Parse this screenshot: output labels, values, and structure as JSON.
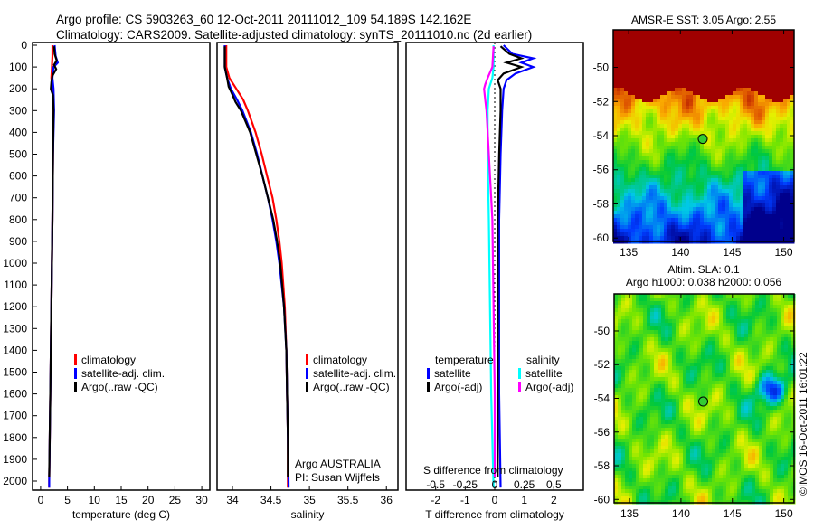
{
  "header": {
    "title_line1": "Argo profile: CS 5903263_60 12-Oct-2011 20111012_109 54.189S 142.162E",
    "title_line2": "Climatology: CARS2009. Satellite-adjusted climatology: synTS_20111010.nc (2d earlier)"
  },
  "colors": {
    "climatology": "#ff0000",
    "satellite": "#0000ff",
    "argo": "#000000",
    "sal_satellite": "#00ffff",
    "sal_argo": "#ff00ff"
  },
  "chart_data": [
    {
      "type": "line",
      "id": "temperature",
      "xlabel": "temperature (deg C)",
      "xlim": [
        -1.5,
        31.5
      ],
      "xticks": [
        0,
        5,
        10,
        15,
        20,
        25,
        30
      ],
      "ylim": [
        2050,
        0
      ],
      "yticks": [
        0,
        100,
        200,
        300,
        400,
        500,
        600,
        700,
        800,
        900,
        1000,
        1100,
        1200,
        1300,
        1400,
        1500,
        1600,
        1700,
        1800,
        1900,
        2000
      ],
      "legend": {
        "items": [
          "climatology",
          "satellite-adj. clim.",
          "Argo(..raw -QC)"
        ],
        "placement": "lower-center"
      },
      "series": [
        {
          "name": "climatology",
          "color": "#ff0000",
          "pressure": [
            0,
            50,
            100,
            150,
            200,
            300,
            500,
            800,
            1200,
            1600,
            2000,
            2030
          ],
          "values": [
            2.2,
            2.2,
            2.1,
            2.0,
            2.2,
            2.4,
            2.3,
            2.2,
            2.0,
            1.8,
            1.6,
            1.6
          ]
        },
        {
          "name": "satellite-adj. clim.",
          "color": "#0000ff",
          "pressure": [
            0,
            50,
            80,
            100,
            150,
            200,
            300,
            500,
            800,
            1200,
            1600,
            2000,
            2030
          ],
          "values": [
            2.6,
            2.8,
            3.2,
            2.4,
            2.2,
            2.4,
            2.5,
            2.3,
            2.2,
            2.0,
            1.8,
            1.6,
            1.6
          ]
        },
        {
          "name": "Argo(..raw -QC)",
          "color": "#000000",
          "pressure": [
            5,
            40,
            70,
            90,
            110,
            140,
            170,
            200,
            230,
            300,
            500,
            800,
            1200,
            1600,
            1980
          ],
          "values": [
            2.5,
            2.6,
            3.0,
            2.5,
            2.9,
            2.2,
            2.0,
            1.9,
            2.3,
            2.4,
            2.3,
            2.2,
            2.0,
            1.8,
            1.6
          ]
        }
      ]
    },
    {
      "type": "line",
      "id": "salinity",
      "xlabel": "salinity",
      "xlim": [
        33.8,
        36.15
      ],
      "xticks": [
        34,
        34.5,
        35,
        35.5,
        36
      ],
      "ylim": [
        2050,
        0
      ],
      "legend": {
        "items": [
          "climatology",
          "satellite-adj. clim.",
          "Argo(..raw -QC)"
        ],
        "placement": "lower-right"
      },
      "annotations": [
        "Argo AUSTRALIA",
        "PI: Susan Wijffels"
      ],
      "series": [
        {
          "name": "climatology",
          "color": "#ff0000",
          "pressure": [
            0,
            100,
            150,
            200,
            250,
            300,
            400,
            500,
            600,
            700,
            800,
            900,
            1000,
            1200,
            1400,
            1600,
            1800,
            2030
          ],
          "values": [
            33.92,
            33.92,
            33.96,
            34.05,
            34.14,
            34.2,
            34.3,
            34.38,
            34.45,
            34.52,
            34.57,
            34.61,
            34.64,
            34.68,
            34.7,
            34.71,
            34.72,
            34.72
          ]
        },
        {
          "name": "satellite-adj. clim.",
          "color": "#0000ff",
          "pressure": [
            0,
            100,
            150,
            200,
            250,
            300,
            400,
            500,
            600,
            700,
            800,
            900,
            1000,
            1200,
            1400,
            1600,
            1800,
            2030
          ],
          "values": [
            33.9,
            33.9,
            33.93,
            33.98,
            34.06,
            34.13,
            34.24,
            34.32,
            34.39,
            34.46,
            34.52,
            34.57,
            34.61,
            34.67,
            34.7,
            34.71,
            34.72,
            34.73
          ]
        },
        {
          "name": "Argo(..raw -QC)",
          "color": "#000000",
          "pressure": [
            5,
            100,
            150,
            190,
            220,
            260,
            300,
            400,
            500,
            600,
            700,
            800,
            900,
            1000,
            1200,
            1400,
            1600,
            1800,
            1980
          ],
          "values": [
            33.9,
            33.9,
            33.93,
            33.95,
            33.99,
            34.04,
            34.11,
            34.23,
            34.31,
            34.39,
            34.46,
            34.53,
            34.58,
            34.62,
            34.67,
            34.7,
            34.71,
            34.72,
            34.72
          ]
        }
      ]
    },
    {
      "type": "line",
      "id": "difference",
      "xlabel": "T difference from climatology",
      "xlabel2": "S difference from climatology",
      "xlim": [
        -3,
        3
      ],
      "xticks": [
        -2,
        -1,
        0,
        1,
        2
      ],
      "xticks2_labels": [
        "-0.5",
        "-0.25",
        "0",
        "0.25",
        "0.5"
      ],
      "xticks2": [
        -0.5,
        -0.25,
        0,
        0.25,
        0.5
      ],
      "legend": {
        "temperature_header": "temperature",
        "salinity_header": "salinity",
        "items_t": [
          "satellite",
          "Argo(-adj)"
        ],
        "items_s": [
          "satellite",
          "Argo(-adj)"
        ],
        "placement": "lower-center"
      },
      "series": [
        {
          "name": "T satellite",
          "color": "#0000ff",
          "pressure": [
            0,
            40,
            60,
            80,
            100,
            130,
            160,
            200,
            300,
            500,
            800,
            1200,
            1600,
            2030
          ],
          "values": [
            0.3,
            0.6,
            1.3,
            0.9,
            1.3,
            0.7,
            0.4,
            0.3,
            0.25,
            0.2,
            0.15,
            0.15,
            0.15,
            0.2
          ]
        },
        {
          "name": "T Argo(-adj)",
          "color": "#000000",
          "pressure": [
            5,
            40,
            60,
            80,
            100,
            130,
            160,
            200,
            300,
            500,
            800,
            1200,
            1600,
            1980
          ],
          "values": [
            0.2,
            0.5,
            0.9,
            0.4,
            0.9,
            0.3,
            0.1,
            0.2,
            0.2,
            0.15,
            0.1,
            0.1,
            0.1,
            0.1
          ]
        },
        {
          "name": "S satellite",
          "color": "#00ffff",
          "pressure": [
            0,
            100,
            150,
            200,
            300,
            500,
            800,
            1200,
            1600,
            2030
          ],
          "values": [
            -0.01,
            -0.01,
            -0.02,
            -0.05,
            -0.06,
            -0.06,
            -0.05,
            -0.04,
            -0.03,
            -0.01
          ]
        },
        {
          "name": "S Argo(-adj)",
          "color": "#ff00ff",
          "pressure": [
            5,
            100,
            150,
            180,
            200,
            250,
            300,
            500,
            800,
            1200,
            1600,
            1980
          ],
          "values": [
            -0.01,
            -0.02,
            -0.06,
            -0.08,
            -0.09,
            -0.08,
            -0.07,
            -0.05,
            -0.02,
            -0.01,
            0,
            0
          ]
        }
      ]
    },
    {
      "type": "heatmap",
      "id": "sst-map",
      "title": "AMSR-E SST: 3.05 Argo: 2.55",
      "xlim": [
        133.5,
        151
      ],
      "ylim": [
        -60.2,
        -47.8
      ],
      "xticks": [
        135,
        140,
        145,
        150
      ],
      "yticks": [
        -50,
        -52,
        -54,
        -56,
        -58,
        -60
      ],
      "marker": {
        "lon": 142.162,
        "lat": -54.189
      }
    },
    {
      "type": "heatmap",
      "id": "sla-map",
      "title_line1": "Altim. SLA: 0.1",
      "title_line2": "Argo h1000: 0.038 h2000: 0.056",
      "xlim": [
        133.5,
        151
      ],
      "ylim": [
        -60.2,
        -47.8
      ],
      "xticks": [
        135,
        140,
        145,
        150
      ],
      "yticks": [
        -50,
        -52,
        -54,
        -56,
        -58,
        -60
      ],
      "marker": {
        "lon": 142.162,
        "lat": -54.189
      }
    }
  ],
  "footer": {
    "credit": "©IMOS 16-Oct-2011 16:01:22"
  }
}
